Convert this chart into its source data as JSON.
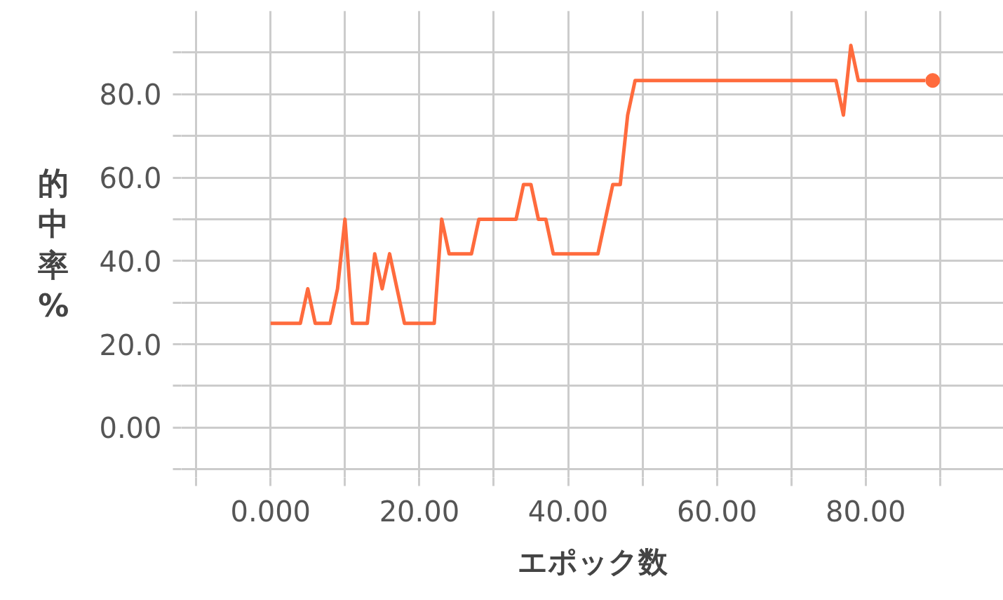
{
  "chart_data": {
    "type": "line",
    "xlabel": "エポック数",
    "ylabel": "的中率%",
    "x": [
      0,
      1,
      2,
      3,
      4,
      5,
      6,
      7,
      8,
      9,
      10,
      11,
      12,
      13,
      14,
      15,
      16,
      17,
      18,
      19,
      20,
      21,
      22,
      23,
      24,
      25,
      26,
      27,
      28,
      29,
      30,
      31,
      32,
      33,
      34,
      35,
      36,
      37,
      38,
      39,
      40,
      41,
      42,
      43,
      44,
      45,
      46,
      47,
      48,
      49,
      50,
      51,
      52,
      53,
      54,
      55,
      56,
      57,
      58,
      59,
      60,
      61,
      62,
      63,
      64,
      65,
      66,
      67,
      68,
      69,
      70,
      71,
      72,
      73,
      74,
      75,
      76,
      77,
      78,
      79,
      80,
      81,
      82,
      83,
      84,
      85,
      86,
      87,
      88
    ],
    "series": [
      {
        "color": "#ff6b3d",
        "values": [
          25,
          25,
          25,
          25,
          25,
          33.3,
          25,
          25,
          25,
          33.3,
          50,
          25,
          25,
          25,
          41.7,
          33.3,
          41.7,
          33.3,
          25,
          25,
          25,
          25,
          25,
          50,
          41.7,
          41.7,
          41.7,
          41.7,
          50,
          50,
          50,
          50,
          50,
          50,
          58.3,
          58.3,
          50,
          50,
          41.7,
          41.7,
          41.7,
          41.7,
          41.7,
          41.7,
          41.7,
          50,
          58.3,
          58.3,
          75,
          83.3,
          83.3,
          83.3,
          83.3,
          83.3,
          83.3,
          83.3,
          83.3,
          83.3,
          83.3,
          83.3,
          83.3,
          83.3,
          83.3,
          83.3,
          83.3,
          83.3,
          83.3,
          83.3,
          83.3,
          83.3,
          83.3,
          83.3,
          83.3,
          83.3,
          83.3,
          83.3,
          83.3,
          75,
          91.7,
          83.3,
          83.3,
          83.3,
          83.3,
          83.3,
          83.3,
          83.3,
          83.3,
          83.3,
          83.3
        ]
      },
      {
        "type": "scatter",
        "color": "#ff6b3d",
        "marker": "circle",
        "x": [
          89
        ],
        "values": [
          83.3
        ]
      }
    ],
    "line_style": "solid",
    "grid": true,
    "xlim": [
      -12,
      98.5
    ],
    "ylim": [
      -12,
      100
    ],
    "xticks": [
      {
        "value": -10,
        "label": null
      },
      {
        "value": 0,
        "label": "0.000"
      },
      {
        "value": 10,
        "label": null
      },
      {
        "value": 20,
        "label": "20.00"
      },
      {
        "value": 30,
        "label": null
      },
      {
        "value": 40,
        "label": "40.00"
      },
      {
        "value": 50,
        "label": null
      },
      {
        "value": 60,
        "label": "60.00"
      },
      {
        "value": 70,
        "label": null
      },
      {
        "value": 80,
        "label": "80.00"
      },
      {
        "value": 90,
        "label": null
      }
    ],
    "yticks": [
      {
        "value": -10,
        "label": null
      },
      {
        "value": 0,
        "label": "0.00"
      },
      {
        "value": 10,
        "label": null
      },
      {
        "value": 20,
        "label": "20.0"
      },
      {
        "value": 30,
        "label": null
      },
      {
        "value": 40,
        "label": "40.0"
      },
      {
        "value": 50,
        "label": null
      },
      {
        "value": 60,
        "label": "60.0"
      },
      {
        "value": 70,
        "label": null
      },
      {
        "value": 80,
        "label": "80.0"
      },
      {
        "value": 90,
        "label": null
      }
    ]
  }
}
